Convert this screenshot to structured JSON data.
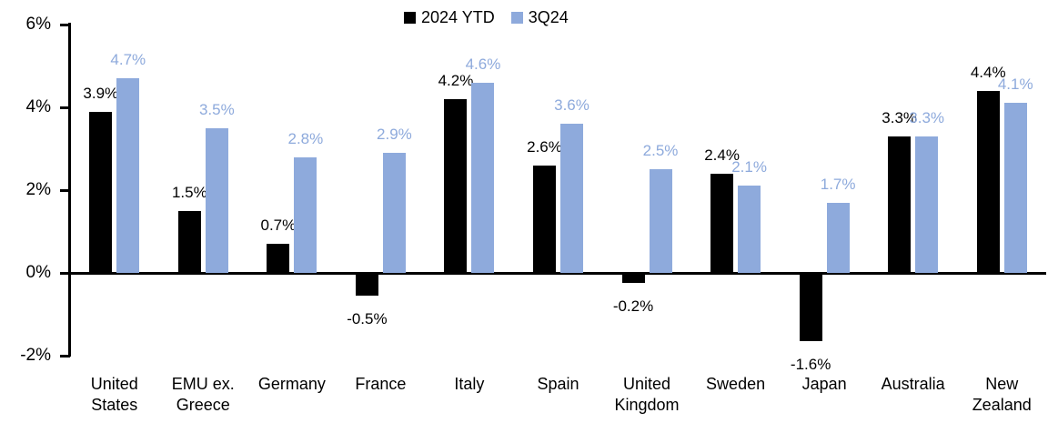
{
  "chart_data": {
    "type": "bar",
    "title": "",
    "categories": [
      "United States",
      "EMU ex. Greece",
      "Germany",
      "France",
      "Italy",
      "Spain",
      "United Kingdom",
      "Sweden",
      "Japan",
      "Australia",
      "New Zealand"
    ],
    "series": [
      {
        "name": "2024 YTD",
        "color": "#000000",
        "values": [
          3.9,
          1.5,
          0.7,
          -0.5,
          4.2,
          2.6,
          -0.2,
          2.4,
          -1.6,
          3.3,
          4.4
        ],
        "labels": [
          "3.9%",
          "1.5%",
          "0.7%",
          "-0.5%",
          "4.2%",
          "2.6%",
          "-0.2%",
          "2.4%",
          "-1.6%",
          "3.3%",
          "4.4%"
        ]
      },
      {
        "name": "3Q24",
        "color": "#8EAADC",
        "values": [
          4.7,
          3.5,
          2.8,
          2.9,
          4.6,
          3.6,
          2.5,
          2.1,
          1.7,
          3.3,
          4.1
        ],
        "labels": [
          "4.7%",
          "3.5%",
          "2.8%",
          "2.9%",
          "4.6%",
          "3.6%",
          "2.5%",
          "2.1%",
          "1.7%",
          "3.3%",
          "4.1%"
        ]
      }
    ],
    "y_axis": {
      "min": -2,
      "max": 6,
      "ticks": [
        {
          "value": 6,
          "label": "6%"
        },
        {
          "value": 4,
          "label": "4%"
        },
        {
          "value": 2,
          "label": "2%"
        },
        {
          "value": 0,
          "label": "0%"
        },
        {
          "value": -2,
          "label": "-2%"
        }
      ]
    },
    "legend_position": "top-center",
    "grid": "off",
    "value_labels": "outside-end"
  }
}
